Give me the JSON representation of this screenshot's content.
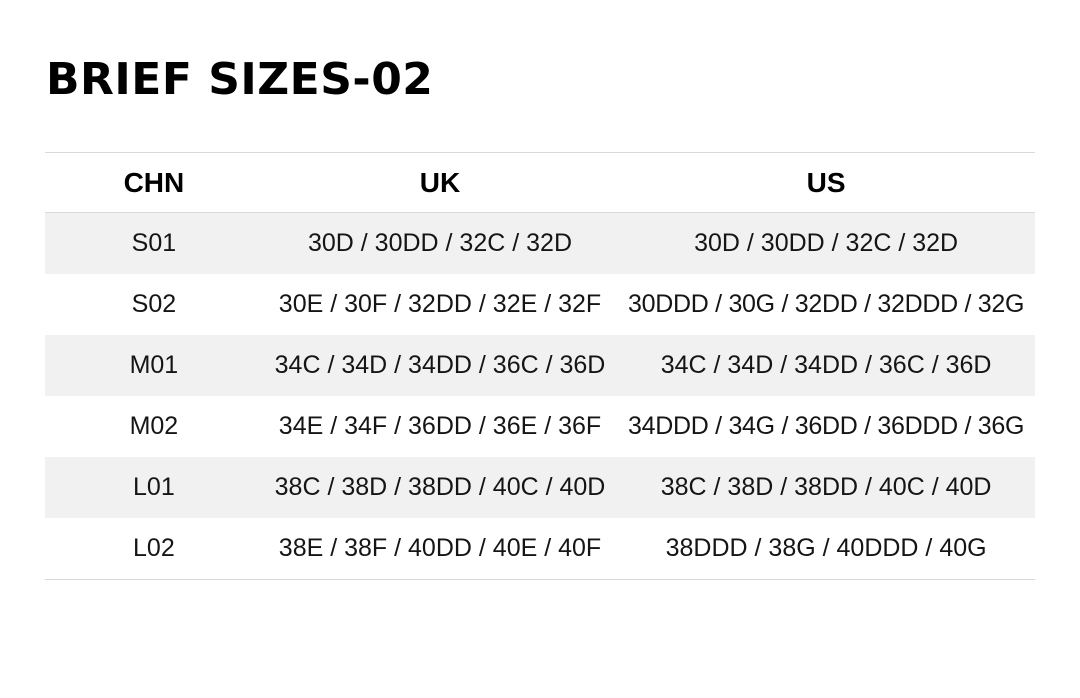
{
  "chart_data": {
    "type": "table",
    "title": "BRIEF SIZES-02",
    "columns": [
      "CHN",
      "UK",
      "US"
    ],
    "rows": [
      [
        "S01",
        "30D / 30DD / 32C / 32D",
        "30D / 30DD / 32C / 32D"
      ],
      [
        "S02",
        "30E / 30F / 32DD / 32E / 32F",
        "30DDD / 30G / 32DD / 32DDD / 32G"
      ],
      [
        "M01",
        "34C / 34D / 34DD / 36C / 36D",
        "34C / 34D / 34DD / 36C / 36D"
      ],
      [
        "M02",
        "34E / 34F / 36DD / 36E / 36F",
        "34DDD / 34G / 36DD / 36DDD / 36G"
      ],
      [
        "L01",
        "38C / 38D / 38DD / 40C / 40D",
        "38C / 38D / 38DD / 40C / 40D"
      ],
      [
        "L02",
        "38E / 38F / 40DD / 40E / 40F",
        "38DDD / 38G / 40DDD / 40G"
      ]
    ],
    "layout": {
      "stripe_style": "odd rows shaded, header separated by horizontal rules, no vertical rules"
    },
    "colors": {
      "background": "#ffffff",
      "row_stripe": "#f1f1f1",
      "rule": "#d9d9d9",
      "text": "#151515",
      "title": "#000000"
    }
  }
}
